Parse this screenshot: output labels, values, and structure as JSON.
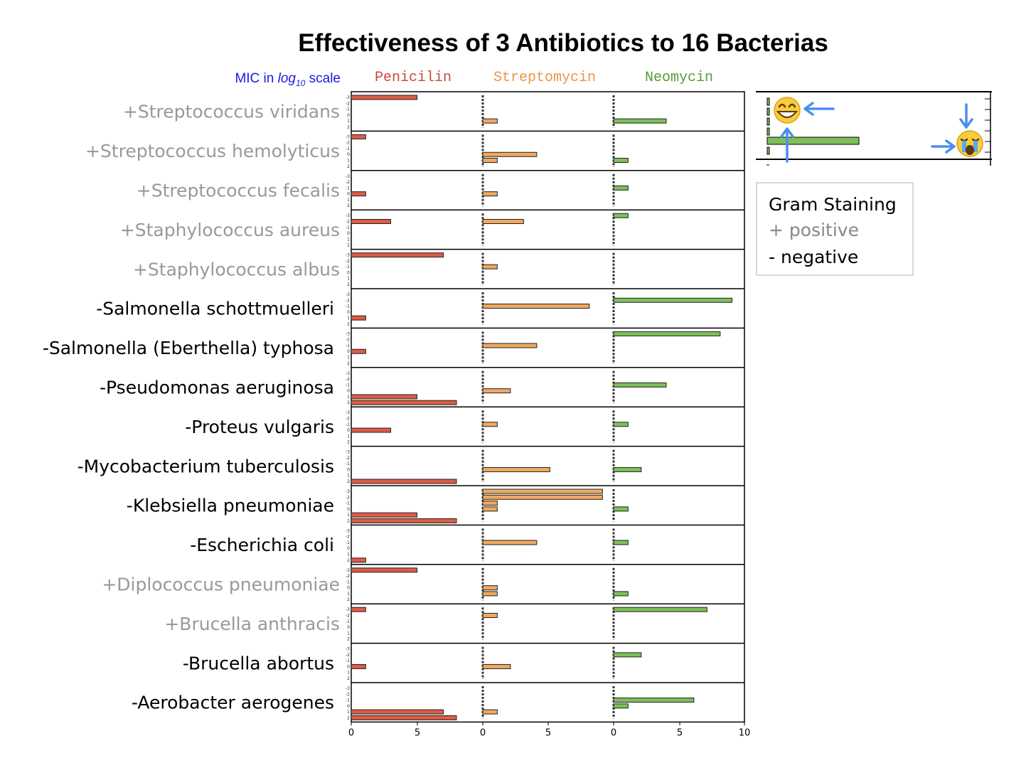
{
  "title": "Effectiveness of 3 Antibiotics to 16 Bacterias",
  "mic_label": {
    "prefix": "MIC in ",
    "log": "log",
    "sub": "10",
    "suffix": " scale"
  },
  "legend": {
    "title": "Gram Staining",
    "positive": "+ positive",
    "negative": "-  negative"
  },
  "colors": {
    "penicilin": "#e05a45",
    "streptomycin": "#f0a860",
    "neomycin": "#7fbf5a",
    "positive_text": "#999999",
    "negative_text": "#000000"
  },
  "chart_data": {
    "type": "bar",
    "title": "Effectiveness of 3 Antibiotics to 16 Bacterias",
    "minor_levels": [
      "-3",
      "-2",
      "-1",
      "0",
      "1",
      "2"
    ],
    "xlim": [
      0,
      10
    ],
    "x_ticks": [
      "0",
      "5",
      "0",
      "5",
      "0",
      "5",
      "10"
    ],
    "note": "",
    "antibiotics": [
      "Penicilin",
      "Streptomycin",
      "Neomycin"
    ],
    "rows": [
      {
        "label": "+Streptococcus viridans",
        "gram": "+",
        "penicilin": -3,
        "streptomycin": 1,
        "neomycin": 1
      },
      {
        "label": "+Streptococcus hemolyticus",
        "gram": "+",
        "penicilin": -3,
        "streptomycin": [
          0,
          1
        ],
        "neomycin": 1
      },
      {
        "label": "+Streptococcus fecalis",
        "gram": "+",
        "penicilin": 0,
        "streptomycin": 0,
        "neomycin": -1
      },
      {
        "label": "+Staphylococcus aureus",
        "gram": "+",
        "penicilin": -2,
        "streptomycin": -2,
        "neomycin": -3
      },
      {
        "label": "+Staphylococcus albus",
        "gram": "+",
        "penicilin": -3,
        "streptomycin": -1,
        "neomycin": null
      },
      {
        "label": "-Salmonella schottmuelleri",
        "gram": "-",
        "penicilin": 1,
        "streptomycin": -1,
        "neomycin": -2
      },
      {
        "label": "-Salmonella (Eberthella) typhosa",
        "gram": "-",
        "penicilin": 0,
        "streptomycin": -1,
        "neomycin": -3
      },
      {
        "label": "-Pseudomonas aeruginosa",
        "gram": "-",
        "penicilin": [
          1,
          2
        ],
        "streptomycin": 0,
        "neomycin": -1
      },
      {
        "label": "-Proteus vulgaris",
        "gram": "-",
        "penicilin": 0,
        "streptomycin": -1,
        "neomycin": -1
      },
      {
        "label": "-Mycobacterium tuberculosis",
        "gram": "-",
        "penicilin": 2,
        "streptomycin": 0,
        "neomycin": 0
      },
      {
        "label": "-Klebsiella pneumoniae",
        "gram": "-",
        "penicilin": [
          1,
          2
        ],
        "streptomycin": [
          -3,
          -2,
          -1,
          0
        ],
        "neomycin": 0
      },
      {
        "label": "-Escherichia coli",
        "gram": "-",
        "penicilin": 2,
        "streptomycin": -1,
        "neomycin": -1
      },
      {
        "label": "+Diplococcus pneumoniae",
        "gram": "+",
        "penicilin": -3,
        "streptomycin": [
          0,
          1
        ],
        "neomycin": 1
      },
      {
        "label": "+Brucella anthracis",
        "gram": "+",
        "penicilin": -3,
        "streptomycin": -2,
        "neomycin": -3
      },
      {
        "label": "-Brucella abortus",
        "gram": "-",
        "penicilin": 0,
        "streptomycin": 0,
        "neomycin": -2
      },
      {
        "label": "-Aerobacter aerogenes",
        "gram": "-",
        "penicilin": [
          1,
          2
        ],
        "streptomycin": 1,
        "neomycin": [
          -1,
          0
        ]
      }
    ]
  }
}
